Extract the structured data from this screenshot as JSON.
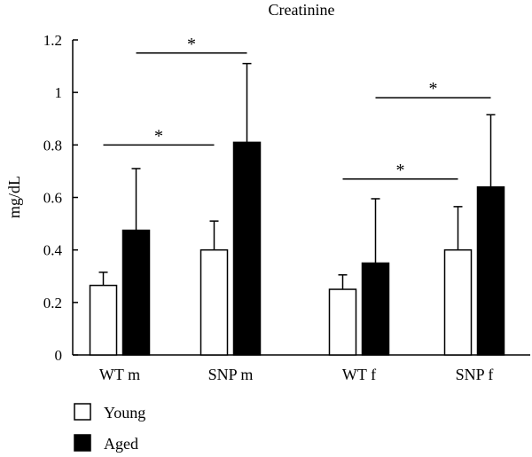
{
  "chart_data": {
    "type": "bar",
    "title": "Creatinine",
    "xlabel": "",
    "ylabel": "mg/dL",
    "ylim": [
      0,
      1.2
    ],
    "yticks": [
      "0",
      "0.2",
      "0.4",
      "0.6",
      "0.8",
      "1",
      "1.2"
    ],
    "categories": [
      "WT m",
      "SNP m",
      "WT f",
      "SNP f"
    ],
    "series": [
      {
        "name": "Young",
        "values": [
          0.265,
          0.4,
          0.25,
          0.4
        ],
        "errors": [
          0.05,
          0.11,
          0.055,
          0.165
        ],
        "color": "#ffffff"
      },
      {
        "name": "Aged",
        "values": [
          0.475,
          0.81,
          0.35,
          0.64
        ],
        "errors": [
          0.235,
          0.3,
          0.245,
          0.275
        ],
        "color": "#000000"
      }
    ],
    "significance": [
      {
        "from": "WT m",
        "to": "SNP m",
        "series": "Young",
        "label": "*",
        "level": 0.8
      },
      {
        "from": "WT m",
        "to": "SNP m",
        "series": "Aged",
        "label": "*",
        "level": 1.15
      },
      {
        "from": "WT f",
        "to": "SNP f",
        "series": "Young",
        "label": "*",
        "level": 0.67
      },
      {
        "from": "WT f",
        "to": "SNP f",
        "series": "Aged",
        "label": "*",
        "level": 0.98
      }
    ],
    "legend_position": "bottom-left",
    "grid": false
  }
}
